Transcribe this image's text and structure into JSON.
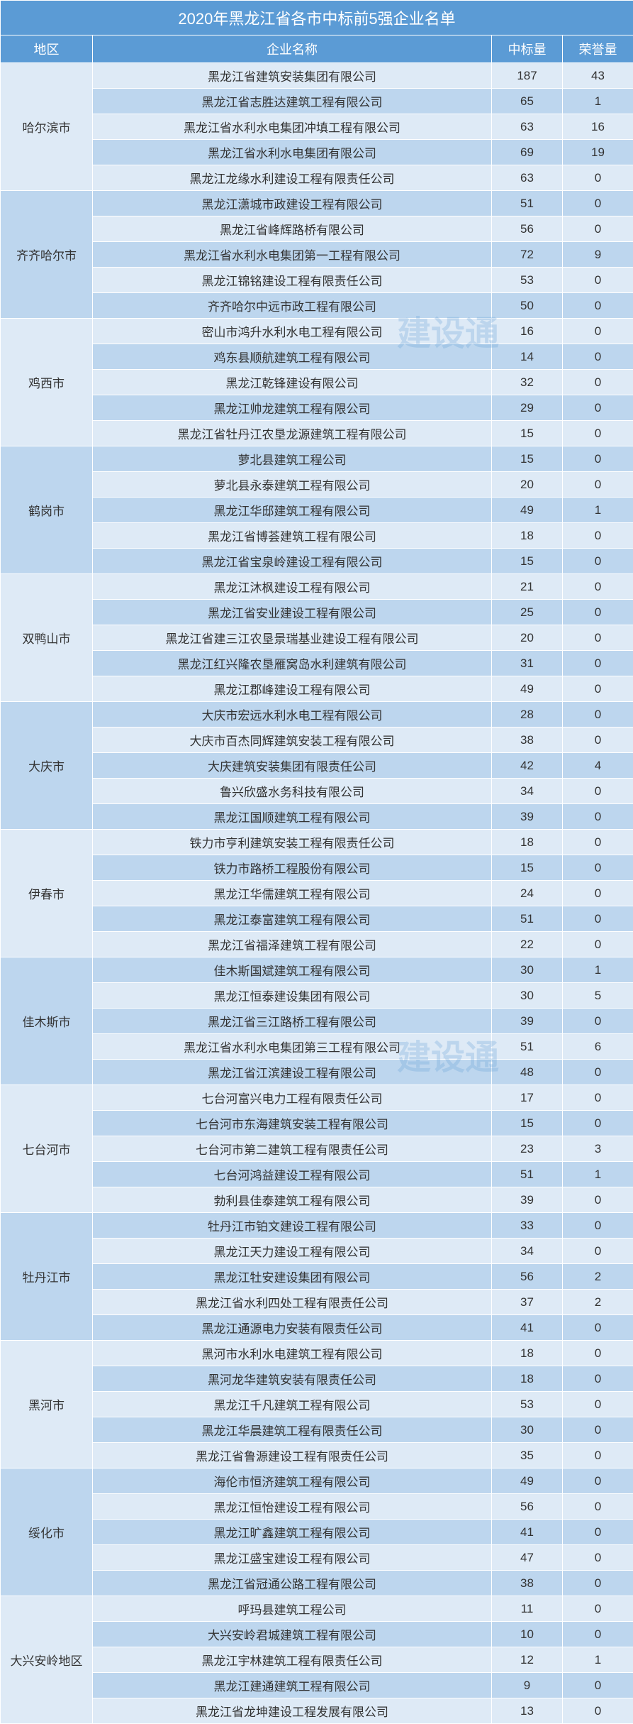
{
  "title": "2020年黑龙江省各市中标前5强企业名单",
  "watermark": "建设通",
  "columns": {
    "region": "地区",
    "company": "企业名称",
    "bid": "中标量",
    "honor": "荣誉量"
  },
  "colors": {
    "header_bg": "#5b9bd5",
    "header_fg": "#ffffff",
    "row_light": "#deeaf6",
    "row_dark": "#bdd6ee",
    "text": "#333333"
  },
  "regions": [
    {
      "name": "哈尔滨市",
      "shade": "light",
      "rows": [
        {
          "company": "黑龙江省建筑安装集团有限公司",
          "bid": 187,
          "honor": 43
        },
        {
          "company": "黑龙江省志胜达建筑工程有限公司",
          "bid": 65,
          "honor": 1
        },
        {
          "company": "黑龙江省水利水电集团冲填工程有限公司",
          "bid": 63,
          "honor": 16
        },
        {
          "company": "黑龙江省水利水电集团有限公司",
          "bid": 69,
          "honor": 19
        },
        {
          "company": "黑龙江龙缘水利建设工程有限责任公司",
          "bid": 63,
          "honor": 0
        }
      ]
    },
    {
      "name": "齐齐哈尔市",
      "shade": "dark",
      "rows": [
        {
          "company": "黑龙江潇城市政建设工程有限公司",
          "bid": 51,
          "honor": 0
        },
        {
          "company": "黑龙江省峰辉路桥有限公司",
          "bid": 56,
          "honor": 0
        },
        {
          "company": "黑龙江省水利水电集团第一工程有限公司",
          "bid": 72,
          "honor": 9
        },
        {
          "company": "黑龙江锦铭建设工程有限责任公司",
          "bid": 53,
          "honor": 0
        },
        {
          "company": "齐齐哈尔中远市政工程有限公司",
          "bid": 50,
          "honor": 0
        }
      ]
    },
    {
      "name": "鸡西市",
      "shade": "light",
      "rows": [
        {
          "company": "密山市鸿升水利水电工程有限公司",
          "bid": 16,
          "honor": 0
        },
        {
          "company": "鸡东县顺航建筑工程有限公司",
          "bid": 14,
          "honor": 0
        },
        {
          "company": "黑龙江乾锋建设有限公司",
          "bid": 32,
          "honor": 0
        },
        {
          "company": "黑龙江帅龙建筑工程有限公司",
          "bid": 29,
          "honor": 0
        },
        {
          "company": "黑龙江省牡丹江农垦龙源建筑工程有限公司",
          "bid": 15,
          "honor": 0
        }
      ]
    },
    {
      "name": "鹤岗市",
      "shade": "dark",
      "rows": [
        {
          "company": "萝北县建筑工程公司",
          "bid": 15,
          "honor": 0
        },
        {
          "company": "萝北县永泰建筑工程有限公司",
          "bid": 20,
          "honor": 0
        },
        {
          "company": "黑龙江华邸建筑工程有限公司",
          "bid": 49,
          "honor": 1
        },
        {
          "company": "黑龙江省博荟建筑工程有限公司",
          "bid": 18,
          "honor": 0
        },
        {
          "company": "黑龙江省宝泉岭建设工程有限公司",
          "bid": 15,
          "honor": 0
        }
      ]
    },
    {
      "name": "双鸭山市",
      "shade": "light",
      "rows": [
        {
          "company": "黑龙江沐枫建设工程有限公司",
          "bid": 21,
          "honor": 0
        },
        {
          "company": "黑龙江省安业建设工程有限公司",
          "bid": 25,
          "honor": 0
        },
        {
          "company": "黑龙江省建三江农垦景瑞基业建设工程有限公司",
          "bid": 20,
          "honor": 0
        },
        {
          "company": "黑龙江红兴隆农垦雁窝岛水利建筑有限公司",
          "bid": 31,
          "honor": 0
        },
        {
          "company": "黑龙江郡峰建设工程有限公司",
          "bid": 49,
          "honor": 0
        }
      ]
    },
    {
      "name": "大庆市",
      "shade": "dark",
      "rows": [
        {
          "company": "大庆市宏远水利水电工程有限公司",
          "bid": 28,
          "honor": 0
        },
        {
          "company": "大庆市百杰同辉建筑安装工程有限公司",
          "bid": 38,
          "honor": 0
        },
        {
          "company": "大庆建筑安装集团有限责任公司",
          "bid": 42,
          "honor": 4
        },
        {
          "company": "鲁兴欣盛水务科技有限公司",
          "bid": 34,
          "honor": 0
        },
        {
          "company": "黑龙江国顺建筑工程有限公司",
          "bid": 39,
          "honor": 0
        }
      ]
    },
    {
      "name": "伊春市",
      "shade": "light",
      "rows": [
        {
          "company": "铁力市亨利建筑安装工程有限责任公司",
          "bid": 18,
          "honor": 0
        },
        {
          "company": "铁力市路桥工程股份有限公司",
          "bid": 15,
          "honor": 0
        },
        {
          "company": "黑龙江华儒建筑工程有限公司",
          "bid": 24,
          "honor": 0
        },
        {
          "company": "黑龙江泰富建筑工程有限公司",
          "bid": 51,
          "honor": 0
        },
        {
          "company": "黑龙江省福泽建筑工程有限公司",
          "bid": 22,
          "honor": 0
        }
      ]
    },
    {
      "name": "佳木斯市",
      "shade": "dark",
      "rows": [
        {
          "company": "佳木斯国斌建筑工程有限公司",
          "bid": 30,
          "honor": 1
        },
        {
          "company": "黑龙江恒泰建设集团有限公司",
          "bid": 30,
          "honor": 5
        },
        {
          "company": "黑龙江省三江路桥工程有限公司",
          "bid": 39,
          "honor": 0
        },
        {
          "company": "黑龙江省水利水电集团第三工程有限公司",
          "bid": 51,
          "honor": 6
        },
        {
          "company": "黑龙江省江滨建设工程有限公司",
          "bid": 48,
          "honor": 0
        }
      ]
    },
    {
      "name": "七台河市",
      "shade": "light",
      "rows": [
        {
          "company": "七台河富兴电力工程有限责任公司",
          "bid": 17,
          "honor": 0
        },
        {
          "company": "七台河市东海建筑安装工程有限公司",
          "bid": 15,
          "honor": 0
        },
        {
          "company": "七台河市第二建筑工程有限责任公司",
          "bid": 23,
          "honor": 3
        },
        {
          "company": "七台河鸿益建设工程有限公司",
          "bid": 51,
          "honor": 1
        },
        {
          "company": "勃利县佳泰建筑工程有限公司",
          "bid": 39,
          "honor": 0
        }
      ]
    },
    {
      "name": "牡丹江市",
      "shade": "dark",
      "rows": [
        {
          "company": "牡丹江市铂文建设工程有限公司",
          "bid": 33,
          "honor": 0
        },
        {
          "company": "黑龙江天力建设工程有限公司",
          "bid": 34,
          "honor": 0
        },
        {
          "company": "黑龙江牡安建设集团有限公司",
          "bid": 56,
          "honor": 2
        },
        {
          "company": "黑龙江省水利四处工程有限责任公司",
          "bid": 37,
          "honor": 2
        },
        {
          "company": "黑龙江通源电力安装有限责任公司",
          "bid": 41,
          "honor": 0
        }
      ]
    },
    {
      "name": "黑河市",
      "shade": "light",
      "rows": [
        {
          "company": "黑河市水利水电建筑工程有限公司",
          "bid": 18,
          "honor": 0
        },
        {
          "company": "黑河龙华建筑安装有限责任公司",
          "bid": 18,
          "honor": 0
        },
        {
          "company": "黑龙江千凡建筑工程有限公司",
          "bid": 53,
          "honor": 0
        },
        {
          "company": "黑龙江华晨建筑工程有限责任公司",
          "bid": 30,
          "honor": 0
        },
        {
          "company": "黑龙江省鲁源建设工程有限责任公司",
          "bid": 35,
          "honor": 0
        }
      ]
    },
    {
      "name": "绥化市",
      "shade": "dark",
      "rows": [
        {
          "company": "海伦市恒济建筑工程有限公司",
          "bid": 49,
          "honor": 0
        },
        {
          "company": "黑龙江恒怡建设工程有限公司",
          "bid": 56,
          "honor": 0
        },
        {
          "company": "黑龙江旷鑫建筑工程有限公司",
          "bid": 41,
          "honor": 0
        },
        {
          "company": "黑龙江盛宝建设工程有限公司",
          "bid": 47,
          "honor": 0
        },
        {
          "company": "黑龙江省冠通公路工程有限公司",
          "bid": 38,
          "honor": 0
        }
      ]
    },
    {
      "name": "大兴安岭地区",
      "shade": "light",
      "rows": [
        {
          "company": "呼玛县建筑工程公司",
          "bid": 11,
          "honor": 0
        },
        {
          "company": "大兴安岭君城建筑工程有限公司",
          "bid": 10,
          "honor": 0
        },
        {
          "company": "黑龙江宇林建筑工程有限责任公司",
          "bid": 12,
          "honor": 1
        },
        {
          "company": "黑龙江建通建筑工程有限公司",
          "bid": 9,
          "honor": 0
        },
        {
          "company": "黑龙江省龙坤建设工程发展有限公司",
          "bid": 13,
          "honor": 0
        }
      ]
    }
  ]
}
